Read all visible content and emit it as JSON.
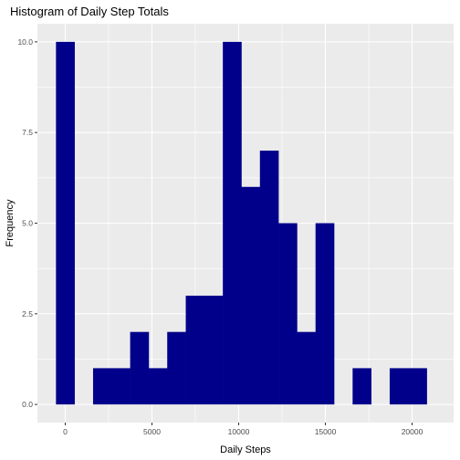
{
  "chart_data": {
    "type": "bar",
    "title": "Histogram of Daily Step Totals",
    "xlabel": "Daily Steps",
    "ylabel": "Frequency",
    "bin_width": 1069,
    "bins": [
      {
        "start": -535,
        "end": 535,
        "count": 10
      },
      {
        "start": 535,
        "end": 1604,
        "count": 0
      },
      {
        "start": 1604,
        "end": 2673,
        "count": 1
      },
      {
        "start": 2673,
        "end": 3742,
        "count": 1
      },
      {
        "start": 3742,
        "end": 4811,
        "count": 2
      },
      {
        "start": 4811,
        "end": 5880,
        "count": 1
      },
      {
        "start": 5880,
        "end": 6949,
        "count": 2
      },
      {
        "start": 6949,
        "end": 8018,
        "count": 3
      },
      {
        "start": 8018,
        "end": 9087,
        "count": 3
      },
      {
        "start": 9087,
        "end": 10156,
        "count": 10
      },
      {
        "start": 10156,
        "end": 11225,
        "count": 6
      },
      {
        "start": 11225,
        "end": 12294,
        "count": 7
      },
      {
        "start": 12294,
        "end": 13363,
        "count": 5
      },
      {
        "start": 13363,
        "end": 14432,
        "count": 2
      },
      {
        "start": 14432,
        "end": 15501,
        "count": 5
      },
      {
        "start": 15501,
        "end": 16570,
        "count": 0
      },
      {
        "start": 16570,
        "end": 17639,
        "count": 1
      },
      {
        "start": 17639,
        "end": 18708,
        "count": 0
      },
      {
        "start": 18708,
        "end": 19777,
        "count": 1
      },
      {
        "start": 19777,
        "end": 20846,
        "count": 1
      }
    ],
    "xlim": [
      -1605,
      22394
    ],
    "ylim": [
      -0.5,
      10.5
    ],
    "x_ticks": [
      0,
      5000,
      10000,
      15000,
      20000
    ],
    "x_tick_labels": [
      "0",
      "5000",
      "10000",
      "15000",
      "20000"
    ],
    "y_ticks": [
      0,
      2.5,
      5,
      7.5,
      10
    ],
    "y_tick_labels": [
      "0.0",
      "2.5",
      "5.0",
      "7.5",
      "10.0"
    ],
    "grid": true,
    "bar_color": "#00008B",
    "panel_color": "#EBEBEB",
    "grid_color": "#FFFFFF"
  }
}
